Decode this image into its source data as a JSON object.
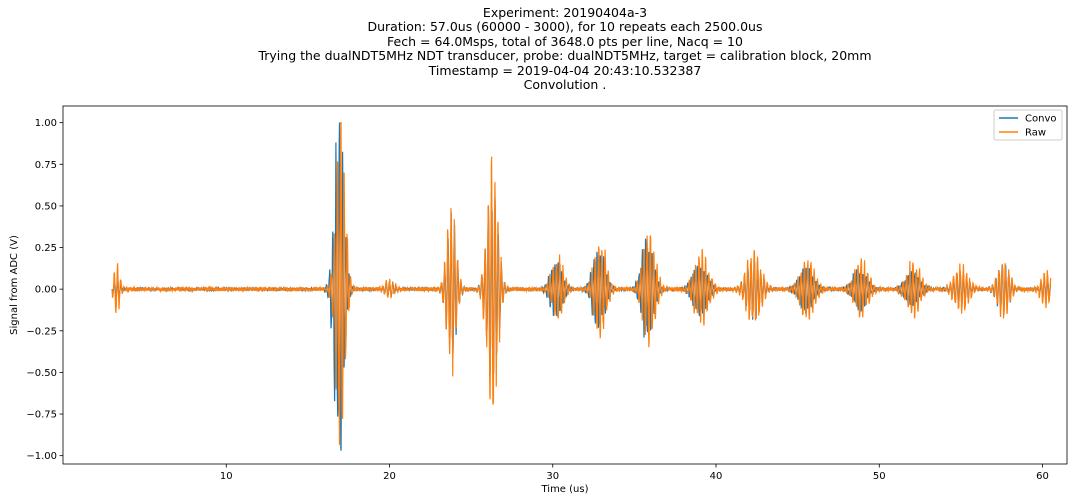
{
  "chart_data": {
    "type": "line",
    "title_lines": [
      "Experiment: 20190404a-3",
      "Duration: 57.0us (60000 - 3000), for 10 repeats each 2500.0us",
      "Fech = 64.0Msps, total of 3648.0 pts per line, Nacq = 10",
      "Trying the dualNDT5MHz NDT transducer, probe: dualNDT5MHz, target = calibration block, 20mm",
      "Timestamp = 2019-04-04 20:43:10.532387",
      "Convolution ."
    ],
    "xlabel": "Time (us)",
    "ylabel": "Signal from ADC (V)",
    "xlim": [
      0,
      61.5
    ],
    "ylim": [
      -1.05,
      1.1
    ],
    "xticks": [
      10,
      20,
      30,
      40,
      50,
      60
    ],
    "yticks": [
      -1.0,
      -0.75,
      -0.5,
      -0.25,
      0.0,
      0.25,
      0.5,
      0.75,
      1.0
    ],
    "ytick_labels": [
      "−1.00",
      "−0.75",
      "−0.50",
      "−0.25",
      "0.00",
      "0.25",
      "0.50",
      "0.75",
      "1.00"
    ],
    "grid": false,
    "legend": "top-right",
    "x_range": [
      3.0,
      60.5
    ],
    "series": [
      {
        "name": "Convo",
        "color": "#1f77b4",
        "noise": 0.008,
        "packets": [
          {
            "t": 3.3,
            "amp": 0.05,
            "width": 0.3,
            "freq": 5
          },
          {
            "t": 16.9,
            "amp": 0.92,
            "width": 0.4,
            "freq": 5
          },
          {
            "t": 20.0,
            "amp": 0.04,
            "width": 0.4,
            "freq": 5
          },
          {
            "t": 23.8,
            "amp": 0.38,
            "width": 0.4,
            "freq": 5
          },
          {
            "t": 26.3,
            "amp": 0.6,
            "width": 0.45,
            "freq": 5
          },
          {
            "t": 30.2,
            "amp": 0.15,
            "width": 0.5,
            "freq": 5
          },
          {
            "t": 32.8,
            "amp": 0.24,
            "width": 0.5,
            "freq": 5
          },
          {
            "t": 35.8,
            "amp": 0.28,
            "width": 0.5,
            "freq": 5
          },
          {
            "t": 39.0,
            "amp": 0.14,
            "width": 0.6,
            "freq": 5
          },
          {
            "t": 42.3,
            "amp": 0.16,
            "width": 0.6,
            "freq": 5
          },
          {
            "t": 45.5,
            "amp": 0.12,
            "width": 0.6,
            "freq": 5
          },
          {
            "t": 48.8,
            "amp": 0.11,
            "width": 0.6,
            "freq": 5
          },
          {
            "t": 52.0,
            "amp": 0.1,
            "width": 0.6,
            "freq": 5
          },
          {
            "t": 55.0,
            "amp": 0.09,
            "width": 0.6,
            "freq": 5
          },
          {
            "t": 57.6,
            "amp": 0.14,
            "width": 0.5,
            "freq": 5
          },
          {
            "t": 60.2,
            "amp": 0.06,
            "width": 0.4,
            "freq": 5
          }
        ]
      },
      {
        "name": "Raw",
        "color": "#ff7f0e",
        "noise": 0.012,
        "packets": [
          {
            "t": 3.3,
            "amp": 0.13,
            "width": 0.25,
            "freq": 5
          },
          {
            "t": 17.0,
            "amp": 0.98,
            "width": 0.38,
            "freq": 5
          },
          {
            "t": 20.0,
            "amp": 0.05,
            "width": 0.4,
            "freq": 5
          },
          {
            "t": 23.8,
            "amp": 0.44,
            "width": 0.4,
            "freq": 5
          },
          {
            "t": 26.3,
            "amp": 0.68,
            "width": 0.45,
            "freq": 5
          },
          {
            "t": 30.3,
            "amp": 0.18,
            "width": 0.5,
            "freq": 5
          },
          {
            "t": 32.9,
            "amp": 0.27,
            "width": 0.5,
            "freq": 5
          },
          {
            "t": 35.9,
            "amp": 0.34,
            "width": 0.5,
            "freq": 5
          },
          {
            "t": 39.1,
            "amp": 0.2,
            "width": 0.6,
            "freq": 5
          },
          {
            "t": 42.3,
            "amp": 0.21,
            "width": 0.6,
            "freq": 5
          },
          {
            "t": 45.6,
            "amp": 0.17,
            "width": 0.6,
            "freq": 5
          },
          {
            "t": 48.9,
            "amp": 0.16,
            "width": 0.6,
            "freq": 5
          },
          {
            "t": 52.1,
            "amp": 0.15,
            "width": 0.6,
            "freq": 5
          },
          {
            "t": 55.0,
            "amp": 0.13,
            "width": 0.6,
            "freq": 5
          },
          {
            "t": 57.6,
            "amp": 0.16,
            "width": 0.5,
            "freq": 5
          },
          {
            "t": 60.2,
            "amp": 0.1,
            "width": 0.4,
            "freq": 5
          }
        ]
      }
    ]
  }
}
